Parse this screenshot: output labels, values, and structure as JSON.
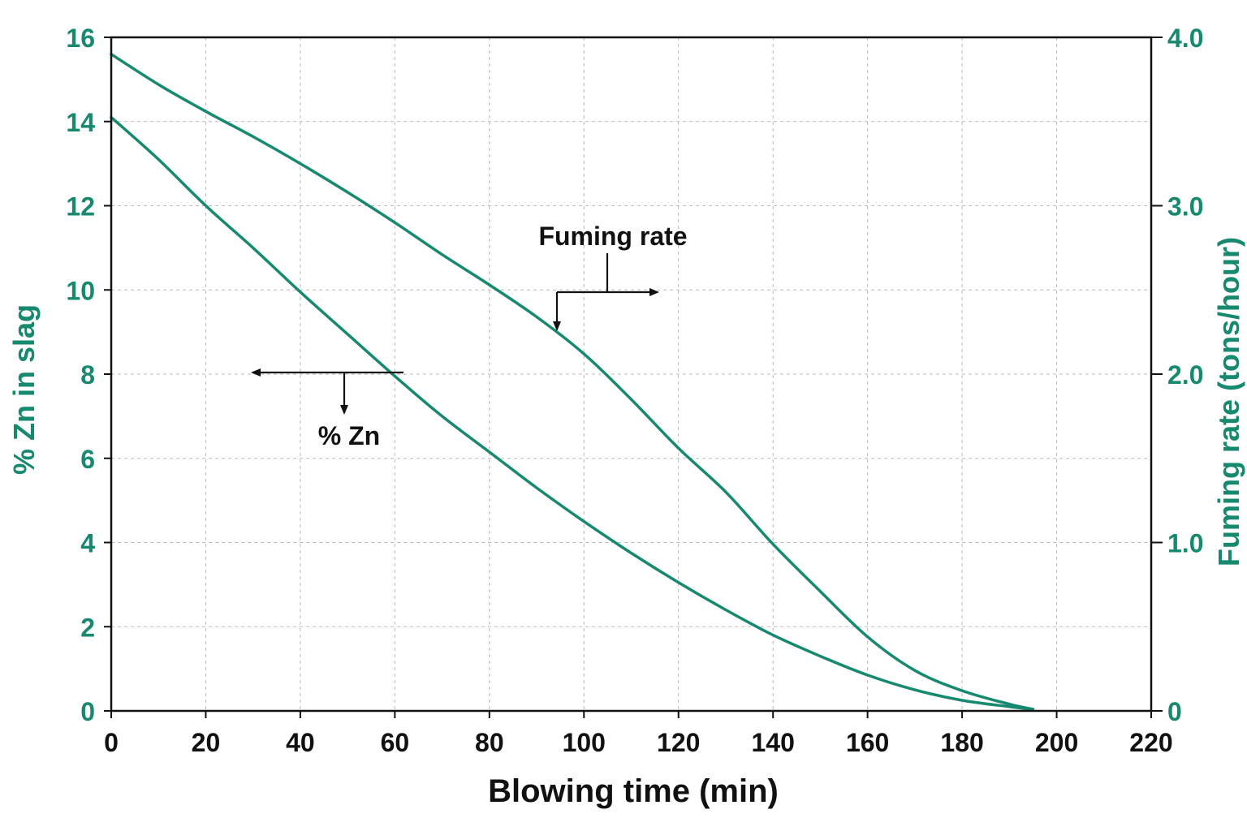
{
  "chart_data": {
    "type": "line",
    "xlabel": "Blowing time (min)",
    "ylabel_left": "% Zn in slag",
    "ylabel_right": "Fuming rate (tons/hour)",
    "xlim": [
      0,
      220
    ],
    "ylim_left": [
      0,
      16
    ],
    "ylim_right": [
      0,
      4
    ],
    "x_ticks": [
      "0",
      "20",
      "40",
      "60",
      "80",
      "100",
      "120",
      "140",
      "160",
      "180",
      "200",
      "220"
    ],
    "y_ticks_left": [
      "0",
      "2",
      "4",
      "6",
      "8",
      "10",
      "12",
      "14",
      "16"
    ],
    "y_ticks_right": [
      "0",
      "1.0",
      "2.0",
      "3.0",
      "4.0"
    ],
    "grid": true,
    "colors": {
      "series": "#16896e",
      "axis": "#111111",
      "grid": "#b8b8b8"
    },
    "annotations": {
      "fuming_rate": "Fuming rate",
      "zn": "% Zn"
    },
    "series": [
      {
        "name": "Fuming rate",
        "axis": "right",
        "x": [
          0,
          10,
          20,
          30,
          40,
          50,
          60,
          70,
          80,
          90,
          100,
          110,
          120,
          130,
          140,
          150,
          160,
          170,
          180,
          190,
          195
        ],
        "values": [
          3.9,
          3.72,
          3.56,
          3.41,
          3.25,
          3.08,
          2.9,
          2.71,
          2.53,
          2.34,
          2.12,
          1.85,
          1.56,
          1.3,
          0.99,
          0.71,
          0.44,
          0.24,
          0.12,
          0.04,
          0.01
        ]
      },
      {
        "name": "% Zn",
        "axis": "left",
        "x": [
          0,
          10,
          20,
          30,
          40,
          50,
          60,
          70,
          80,
          90,
          100,
          110,
          120,
          130,
          140,
          150,
          160,
          170,
          180,
          190,
          195
        ],
        "values": [
          14.1,
          13.1,
          12.0,
          11.0,
          9.95,
          8.95,
          7.95,
          7.0,
          6.15,
          5.3,
          4.5,
          3.75,
          3.05,
          2.4,
          1.8,
          1.3,
          0.85,
          0.5,
          0.25,
          0.1,
          0.03
        ]
      }
    ]
  }
}
